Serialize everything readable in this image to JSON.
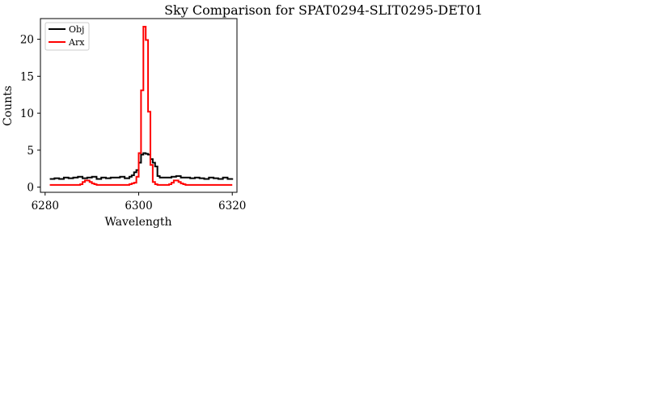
{
  "chart_data": {
    "type": "line",
    "title": "Sky Comparison for SPAT0294-SLIT0295-DET01",
    "xlabel": "Wavelength",
    "ylabel": "Counts",
    "xlim": [
      6279,
      6321
    ],
    "ylim": [
      -0.7,
      22.8
    ],
    "xticks": [
      6280,
      6300,
      6320
    ],
    "yticks": [
      0,
      5,
      10,
      15,
      20
    ],
    "grid": false,
    "legend_position": "top-left",
    "series": [
      {
        "name": "Obj",
        "color": "#000000",
        "drawstyle": "steps",
        "x": [
          6281,
          6282,
          6283,
          6284,
          6285,
          6286,
          6287,
          6288,
          6289,
          6290,
          6291,
          6292,
          6293,
          6294,
          6295,
          6296,
          6297,
          6298,
          6298.5,
          6299,
          6299.5,
          6300,
          6300.5,
          6301,
          6301.5,
          6302,
          6302.5,
          6303,
          6303.5,
          6304,
          6304.5,
          6305,
          6306,
          6307,
          6308,
          6309,
          6310,
          6311,
          6312,
          6313,
          6314,
          6315,
          6316,
          6317,
          6318,
          6319,
          6320
        ],
        "y": [
          1.1,
          1.2,
          1.1,
          1.3,
          1.2,
          1.3,
          1.4,
          1.2,
          1.3,
          1.4,
          1.1,
          1.3,
          1.2,
          1.3,
          1.3,
          1.4,
          1.2,
          1.4,
          1.6,
          2.0,
          2.3,
          3.3,
          4.4,
          4.6,
          4.5,
          4.4,
          3.8,
          3.3,
          2.8,
          1.5,
          1.3,
          1.3,
          1.3,
          1.4,
          1.5,
          1.3,
          1.3,
          1.2,
          1.3,
          1.2,
          1.1,
          1.3,
          1.2,
          1.1,
          1.3,
          1.1,
          1.2
        ]
      },
      {
        "name": "Arx",
        "color": "#ff0000",
        "drawstyle": "steps",
        "x": [
          6281,
          6282,
          6283,
          6284,
          6285,
          6286,
          6287,
          6287.5,
          6288,
          6288.5,
          6289,
          6289.5,
          6290,
          6290.5,
          6291,
          6292,
          6293,
          6294,
          6295,
          6296,
          6297,
          6298,
          6298.5,
          6299,
          6299.5,
          6300,
          6300.5,
          6301,
          6301.5,
          6302,
          6302.5,
          6303,
          6303.5,
          6304,
          6304.5,
          6305,
          6306,
          6306.5,
          6307,
          6307.5,
          6308,
          6308.5,
          6309,
          6309.5,
          6310,
          6310.5,
          6311,
          6312,
          6313,
          6314,
          6315,
          6316,
          6317,
          6318,
          6319,
          6320
        ],
        "y": [
          0.3,
          0.3,
          0.3,
          0.3,
          0.3,
          0.3,
          0.3,
          0.4,
          0.7,
          0.9,
          0.9,
          0.7,
          0.5,
          0.4,
          0.3,
          0.3,
          0.3,
          0.3,
          0.3,
          0.3,
          0.3,
          0.4,
          0.5,
          0.6,
          1.4,
          4.6,
          13.1,
          21.7,
          19.9,
          10.2,
          3.0,
          0.7,
          0.4,
          0.3,
          0.3,
          0.3,
          0.3,
          0.4,
          0.6,
          0.9,
          0.9,
          0.7,
          0.5,
          0.4,
          0.3,
          0.3,
          0.3,
          0.3,
          0.3,
          0.3,
          0.3,
          0.3,
          0.3,
          0.3,
          0.3,
          0.3
        ]
      }
    ]
  }
}
